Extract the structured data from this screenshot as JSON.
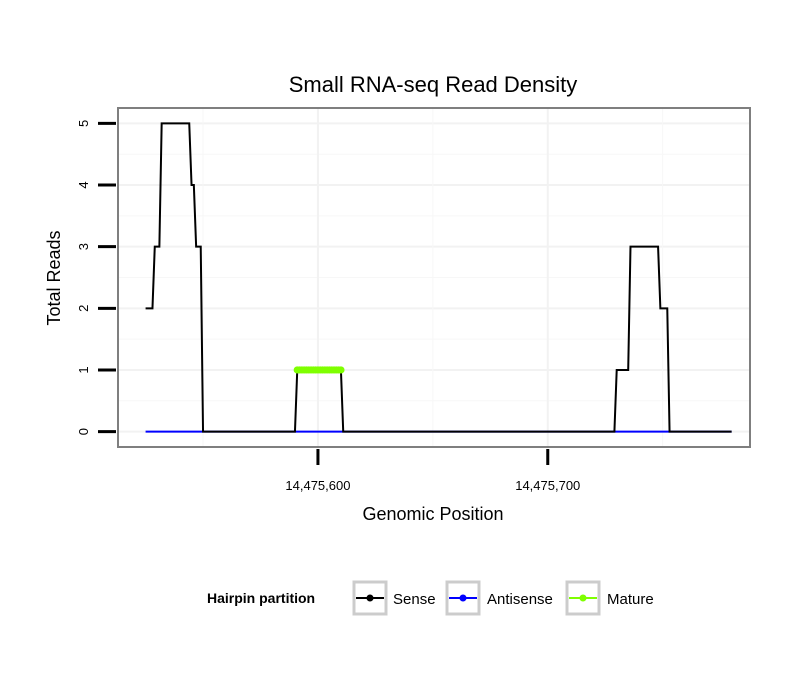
{
  "chart_data": {
    "type": "line",
    "title": "Small RNA-seq Read Density",
    "xlabel": "Genomic Position",
    "ylabel": "Total Reads",
    "xlim": [
      14475513,
      14475788
    ],
    "ylim": [
      -0.25,
      5.25
    ],
    "x_ticks": [
      14475600,
      14475700
    ],
    "x_tick_labels": [
      "14,475,600",
      "14,475,700"
    ],
    "y_ticks": [
      0,
      1,
      2,
      3,
      4,
      5
    ],
    "y_tick_labels": [
      "0",
      "1",
      "2",
      "3",
      "4",
      "5"
    ],
    "grid": true,
    "legend": {
      "position": "bottom",
      "title": "Hairpin partition"
    },
    "series": [
      {
        "name": "Sense",
        "color": "#000000",
        "step": true,
        "x": [
          14475525,
          14475528,
          14475529,
          14475531,
          14475532,
          14475544,
          14475545,
          14475546,
          14475547,
          14475549,
          14475550,
          14475590,
          14475591,
          14475610,
          14475611,
          14475729,
          14475730,
          14475735,
          14475736,
          14475748,
          14475749,
          14475752,
          14475753,
          14475780
        ],
        "y": [
          2,
          2,
          3,
          3,
          5,
          5,
          4,
          4,
          3,
          3,
          0,
          0,
          1,
          1,
          0,
          0,
          1,
          1,
          3,
          3,
          2,
          2,
          0,
          0
        ]
      },
      {
        "name": "Antisense",
        "color": "#0000ff",
        "step": false,
        "x": [
          14475525,
          14475780
        ],
        "y": [
          0,
          0
        ]
      },
      {
        "name": "Mature",
        "color": "#7fff00",
        "points": true,
        "x": [
          14475591,
          14475592,
          14475593,
          14475594,
          14475595,
          14475596,
          14475597,
          14475598,
          14475599,
          14475600,
          14475601,
          14475602,
          14475603,
          14475604,
          14475605,
          14475606,
          14475607,
          14475608,
          14475609,
          14475610
        ],
        "y": [
          1,
          1,
          1,
          1,
          1,
          1,
          1,
          1,
          1,
          1,
          1,
          1,
          1,
          1,
          1,
          1,
          1,
          1,
          1,
          1
        ]
      }
    ]
  }
}
